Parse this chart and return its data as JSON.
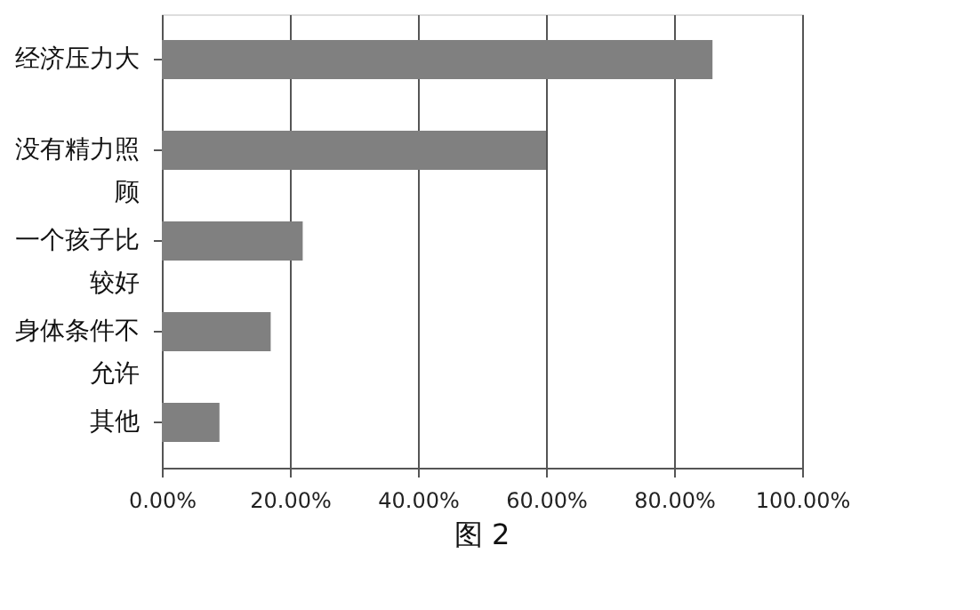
{
  "chart_data": {
    "type": "bar",
    "orientation": "horizontal",
    "title": "图 2",
    "categories": [
      "经济压力大",
      "没有精力照顾",
      "一个孩子比较好",
      "身体条件不允许",
      "其他"
    ],
    "values": [
      0.86,
      0.6,
      0.22,
      0.17,
      0.09
    ],
    "color": "#808080",
    "xlim": [
      0,
      1
    ],
    "xticks": [
      {
        "value": 0,
        "label": "0.00%"
      },
      {
        "value": 0.2,
        "label": "20.00%"
      },
      {
        "value": 0.4,
        "label": "40.00%"
      },
      {
        "value": 0.6,
        "label": "60.00%"
      },
      {
        "value": 0.8,
        "label": "80.00%"
      },
      {
        "value": 1,
        "label": "100.00%"
      }
    ],
    "grid": "x"
  }
}
